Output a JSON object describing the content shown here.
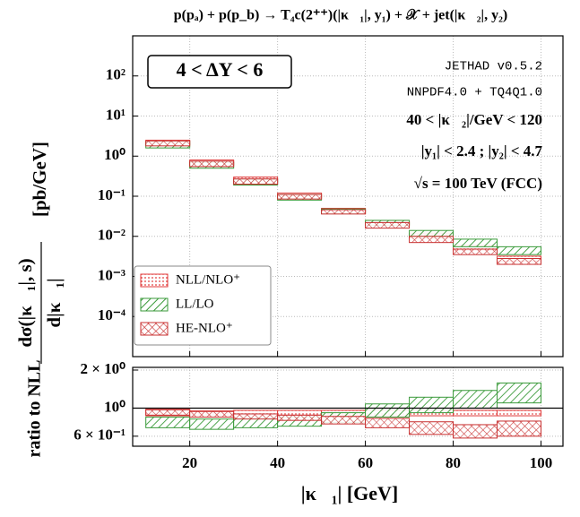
{
  "chart_data": [
    {
      "type": "band",
      "title": "p(pₐ) + p(p_b) → T₄c(2⁺⁺)(|κ⃗₁|, y₁) + 𝒳 + jet(|κ⃗₂|, y₂)",
      "ylabel": {
        "numerator": "dσ(|κ⃗₁|, s)",
        "denominator": "d|κ⃗₁|",
        "unit": "[pb/GeV]"
      },
      "log_y": true,
      "grid": true,
      "legend": "lower left",
      "ylim": [
        1e-05,
        1000
      ],
      "yticks": [
        {
          "value": 0.0001,
          "label": "10⁻⁴"
        },
        {
          "value": 0.001,
          "label": "10⁻³"
        },
        {
          "value": 0.01,
          "label": "10⁻²"
        },
        {
          "value": 0.1,
          "label": "10⁻¹"
        },
        {
          "value": 1,
          "label": "10⁰"
        },
        {
          "value": 10,
          "label": "10¹"
        },
        {
          "value": 100,
          "label": "10²"
        }
      ],
      "xlim": [
        7,
        105
      ],
      "xticks": [
        20,
        40,
        60,
        80,
        100
      ],
      "bins": [
        10,
        20,
        30,
        40,
        50,
        60,
        70,
        80,
        90,
        100
      ],
      "annotations": [
        "4 < ΔY < 6",
        "JETHAD v0.5.2",
        "NNPDF4.0 + TQ4Q1.0",
        "40 < |κ⃗₂|/GeV < 120",
        "|y₁| < 2.4 ;  |y₂| < 4.7",
        "√s = 100 TeV (FCC)"
      ],
      "series": [
        {
          "name": "NLL/NLO⁺",
          "color": "#e03a3a",
          "hatch": "dots",
          "low": [
            1.9,
            0.6,
            0.22,
            0.095,
            0.04,
            0.019,
            0.009,
            0.0045,
            0.0024
          ],
          "high": [
            2.5,
            0.8,
            0.3,
            0.12,
            0.05,
            0.024,
            0.012,
            0.006,
            0.0032
          ]
        },
        {
          "name": "LL/LO",
          "color": "#3a9a3a",
          "hatch": "diagonal",
          "low": [
            1.6,
            0.5,
            0.19,
            0.08,
            0.037,
            0.019,
            0.01,
            0.0055,
            0.0035
          ],
          "high": [
            2.3,
            0.7,
            0.26,
            0.11,
            0.048,
            0.025,
            0.014,
            0.0085,
            0.0055
          ]
        },
        {
          "name": "HE-NLO⁺",
          "color": "#c83030",
          "hatch": "cross",
          "low": [
            1.8,
            0.55,
            0.2,
            0.085,
            0.036,
            0.016,
            0.007,
            0.0035,
            0.002
          ],
          "high": [
            2.4,
            0.75,
            0.27,
            0.11,
            0.046,
            0.022,
            0.01,
            0.0048,
            0.0028
          ]
        }
      ]
    },
    {
      "type": "band",
      "ylabel": "ratio to NLL",
      "xlabel": "|κ⃗₁| [GeV]",
      "log_y": true,
      "grid": true,
      "reference_line": 1,
      "ylim": [
        0.5,
        2.1
      ],
      "yticks": [
        {
          "value": 0.6,
          "label": "6 × 10⁻¹"
        },
        {
          "value": 1,
          "label": "10⁰"
        },
        {
          "value": 2,
          "label": "2 × 10⁰"
        }
      ],
      "xlim": [
        7,
        105
      ],
      "xticks": [
        20,
        40,
        60,
        80,
        100
      ],
      "bins": [
        10,
        20,
        30,
        40,
        50,
        60,
        70,
        80,
        90,
        100
      ],
      "series": [
        {
          "name": "NLL/NLO⁺",
          "color": "#e03a3a",
          "hatch": "dots",
          "low": [
            0.87,
            0.88,
            0.88,
            0.88,
            0.87,
            0.87,
            0.87,
            0.87,
            0.87
          ],
          "high": [
            0.98,
            0.95,
            0.96,
            0.96,
            0.96,
            0.96,
            0.96,
            0.96,
            0.96
          ]
        },
        {
          "name": "LL/LO",
          "color": "#3a9a3a",
          "hatch": "diagonal",
          "low": [
            0.7,
            0.68,
            0.7,
            0.72,
            0.77,
            0.85,
            0.92,
            1.0,
            1.1
          ],
          "high": [
            0.85,
            0.82,
            0.84,
            0.85,
            0.92,
            1.08,
            1.22,
            1.38,
            1.58
          ]
        },
        {
          "name": "HE-NLO⁺",
          "color": "#c83030",
          "hatch": "cross",
          "low": [
            0.88,
            0.85,
            0.82,
            0.8,
            0.75,
            0.7,
            0.62,
            0.58,
            0.6
          ],
          "high": [
            0.97,
            0.94,
            0.9,
            0.88,
            0.86,
            0.83,
            0.78,
            0.74,
            0.79
          ]
        }
      ]
    }
  ]
}
